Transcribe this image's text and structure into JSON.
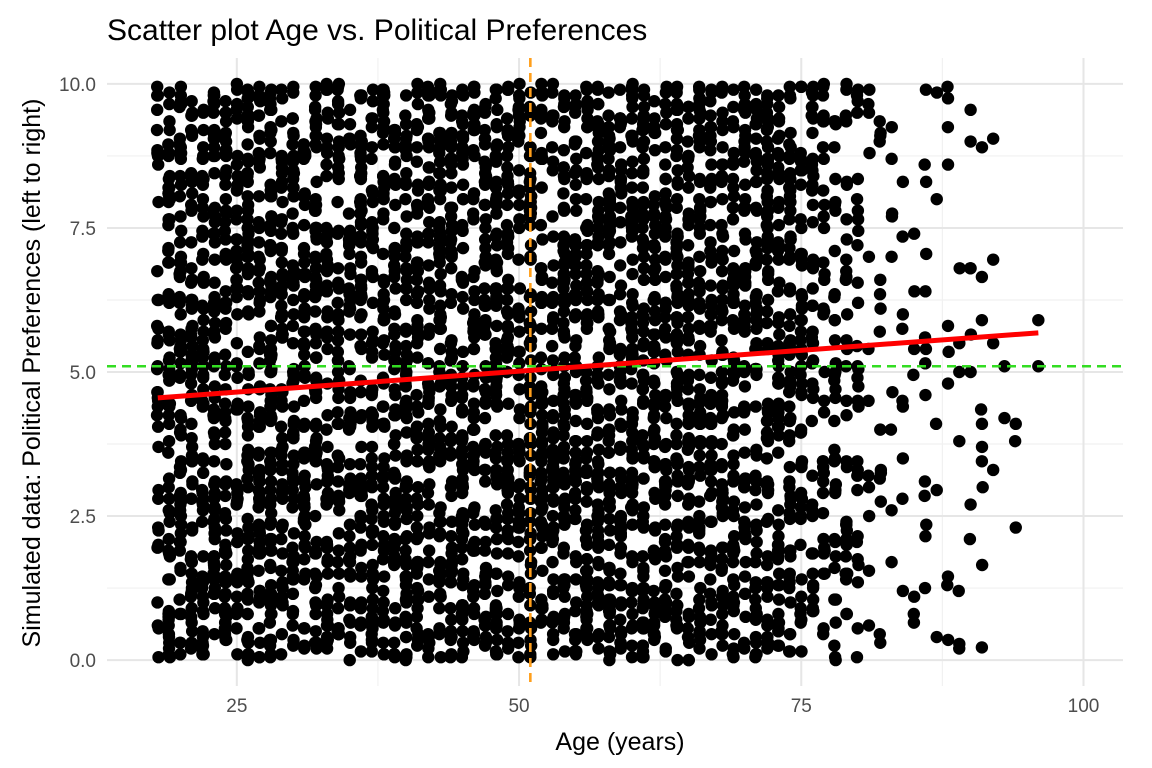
{
  "chart_data": {
    "type": "scatter",
    "title": "Scatter plot Age vs. Political Preferences",
    "xlabel": "Age (years)",
    "ylabel": "Simulated data: Political Preferences (left to right)",
    "xlim": [
      13.5,
      103.5
    ],
    "ylim": [
      -0.45,
      10.45
    ],
    "x_ticks": [
      25,
      50,
      75,
      100
    ],
    "x_tick_labels": [
      "25",
      "50",
      "75",
      "100"
    ],
    "y_ticks": [
      0,
      2.5,
      5,
      7.5,
      10
    ],
    "y_tick_labels": [
      "0.0",
      "2.5",
      "5.0",
      "7.5",
      "10.0"
    ],
    "x_minor": [
      12.5,
      37.5,
      62.5,
      87.5
    ],
    "y_minor": [
      1.25,
      3.75,
      6.25,
      8.75
    ],
    "grid": true,
    "point_color": "#000000",
    "reference_lines": [
      {
        "orientation": "vertical",
        "value": 51,
        "color": "#ff9f1c",
        "style": "dashed"
      },
      {
        "orientation": "horizontal",
        "value": 5.1,
        "color": "#33dd22",
        "style": "dashed"
      }
    ],
    "trend_line": {
      "x": [
        18,
        96
      ],
      "y": [
        4.55,
        5.68
      ],
      "color": "#ff0000"
    },
    "series": [
      {
        "points": [
          [
            96,
            5.9
          ],
          [
            96,
            5.1
          ],
          [
            94,
            4.1
          ],
          [
            94,
            2.3
          ],
          [
            93,
            4.2
          ],
          [
            92,
            9.05
          ],
          [
            92,
            6.95
          ],
          [
            92,
            3.3
          ],
          [
            91,
            6.65
          ],
          [
            91,
            3.45
          ],
          [
            91,
            0.22
          ],
          [
            90,
            9.0
          ],
          [
            90,
            5.0
          ],
          [
            90,
            2.7
          ],
          [
            89,
            3.8
          ],
          [
            89,
            0.28
          ],
          [
            88,
            9.75
          ],
          [
            88,
            4.8
          ],
          [
            87,
            2.95
          ],
          [
            87,
            0.4
          ],
          [
            86,
            2.15
          ],
          [
            85,
            1.1
          ],
          [
            84,
            3.5
          ],
          [
            84,
            1.2
          ],
          [
            83,
            1.7
          ],
          [
            82,
            0.3
          ],
          [
            81,
            1.55
          ],
          [
            80,
            0.55
          ],
          [
            79,
            0.8
          ],
          [
            78,
            0.05
          ],
          [
            77,
            1.5
          ],
          [
            74,
            0.15
          ],
          [
            69,
            0.05
          ],
          [
            66,
            0.5
          ],
          [
            62,
            0.45
          ],
          [
            51,
            0.05
          ],
          [
            44,
            0.1
          ],
          [
            35,
            0.0
          ],
          [
            27,
            0.05
          ],
          [
            26,
            0.1
          ],
          [
            24,
            0.55
          ],
          [
            22,
            0.25
          ],
          [
            20,
            0.3
          ],
          [
            18,
            0.6
          ],
          [
            18,
            9.8
          ],
          [
            21,
            9.7
          ],
          [
            23,
            9.65
          ],
          [
            27,
            9.95
          ],
          [
            30,
            9.85
          ],
          [
            33,
            9.9
          ],
          [
            38,
            9.9
          ],
          [
            40,
            9.8
          ],
          [
            43,
            9.9
          ],
          [
            46,
            9.95
          ],
          [
            49,
            9.9
          ],
          [
            53,
            10.0
          ],
          [
            56,
            9.9
          ],
          [
            60,
            9.95
          ],
          [
            64,
            9.95
          ],
          [
            68,
            9.95
          ],
          [
            71,
            9.9
          ],
          [
            75,
            9.95
          ],
          [
            77,
            10.0
          ],
          [
            79,
            9.9
          ],
          [
            80,
            9.7
          ],
          [
            81,
            9.5
          ],
          [
            82,
            9.1
          ],
          [
            84,
            6.0
          ],
          [
            86,
            6.4
          ],
          [
            87,
            8.0
          ],
          [
            88,
            8.6
          ],
          [
            88,
            5.8
          ],
          [
            89,
            5.5
          ],
          [
            89,
            5.0
          ],
          [
            90,
            6.8
          ],
          [
            91,
            5.9
          ],
          [
            92,
            5.5
          ],
          [
            93,
            5.1
          ],
          [
            85,
            5.4
          ],
          [
            86,
            4.6
          ],
          [
            84,
            4.4
          ],
          [
            83,
            2.6
          ],
          [
            82,
            4.0
          ],
          [
            85,
            7.4
          ],
          [
            84,
            8.3
          ],
          [
            82,
            6.6
          ],
          [
            83,
            7.0
          ],
          [
            81,
            3.0
          ],
          [
            79,
            2.1
          ],
          [
            80,
            4.5
          ]
        ]
      }
    ]
  }
}
